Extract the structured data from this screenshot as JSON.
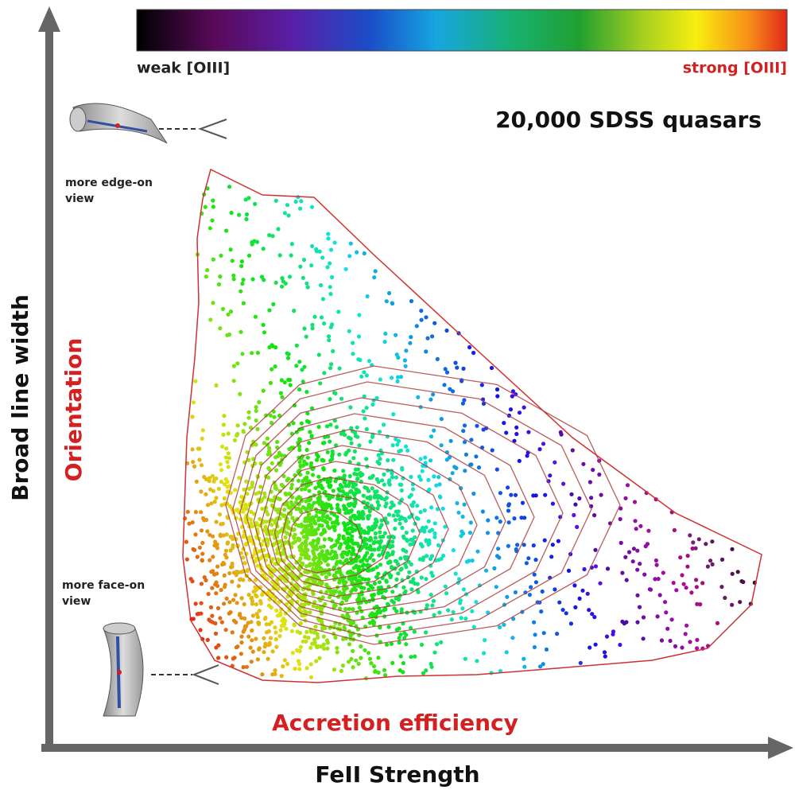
{
  "colorbar": {
    "low_label": "weak [OIII]",
    "high_label": "strong [OIII]"
  },
  "title": "20,000 SDSS quasars",
  "annotations": {
    "edge_on": [
      "more edge-on",
      "view"
    ],
    "face_on": [
      "more face-on",
      "view"
    ]
  },
  "axes": {
    "y_label": "Broad line width",
    "x_label": "FeII Strength"
  },
  "trends": {
    "vertical": "Orientation",
    "horizontal": "Accretion efficiency"
  }
}
